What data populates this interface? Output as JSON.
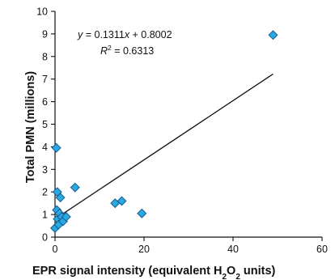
{
  "chart_data": {
    "type": "scatter",
    "xlabel_parts": [
      "EPR signal intensity (equivalent H",
      "2",
      "O",
      "2",
      " units)"
    ],
    "ylabel": "Total PMN (millions)",
    "xlim": [
      0,
      60
    ],
    "ylim": [
      0,
      10
    ],
    "xticks": [
      0,
      20,
      40,
      60
    ],
    "yticks": [
      0,
      1,
      2,
      3,
      4,
      5,
      6,
      7,
      8,
      9,
      10
    ],
    "grid": false,
    "marker": "diamond",
    "marker_color": "#29a9df",
    "marker_edge_color": "#1a5a90",
    "points": [
      {
        "x": 0.0,
        "y": 0.4
      },
      {
        "x": 0.3,
        "y": 3.95
      },
      {
        "x": 0.4,
        "y": 1.2
      },
      {
        "x": 0.5,
        "y": 2.0
      },
      {
        "x": 0.6,
        "y": 0.8
      },
      {
        "x": 0.8,
        "y": 0.55
      },
      {
        "x": 1.0,
        "y": 1.05
      },
      {
        "x": 1.2,
        "y": 1.75
      },
      {
        "x": 1.5,
        "y": 0.9
      },
      {
        "x": 1.8,
        "y": 0.7
      },
      {
        "x": 2.5,
        "y": 0.9
      },
      {
        "x": 4.5,
        "y": 2.2
      },
      {
        "x": 13.5,
        "y": 1.5
      },
      {
        "x": 15.0,
        "y": 1.6
      },
      {
        "x": 19.5,
        "y": 1.05
      },
      {
        "x": 49.0,
        "y": 8.95
      }
    ],
    "trendline": {
      "slope": 0.1311,
      "intercept": 0.8002,
      "x_start": 0,
      "x_end": 49
    },
    "equation": {
      "y": "y",
      "eq_rest": " = 0.1311",
      "x": "x",
      "const": " + 0.8002"
    },
    "r2": {
      "r": "R",
      "sup": "2",
      "rest": " = 0.6313"
    }
  }
}
